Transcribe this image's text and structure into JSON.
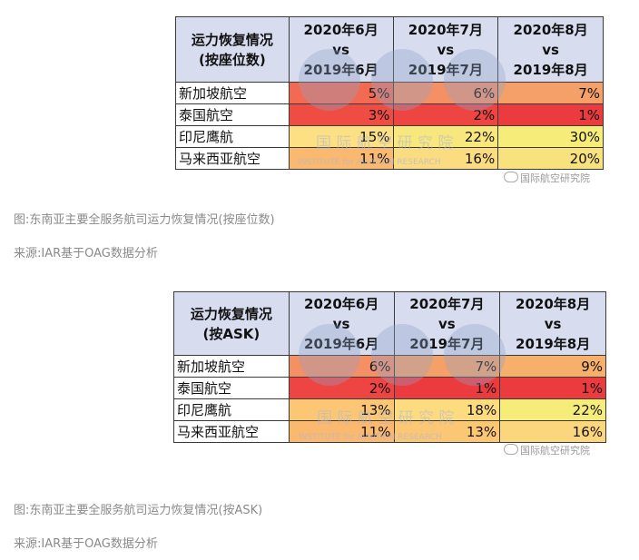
{
  "table1": {
    "header": {
      "metric": [
        "运力恢复情况",
        "(按座位数)"
      ],
      "cols": [
        [
          "2020年6月",
          "vs",
          "2019年6月"
        ],
        [
          "2020年7月",
          "vs",
          "2019年7月"
        ],
        [
          "2020年8月",
          "vs",
          "2019年8月"
        ]
      ]
    },
    "rows": [
      {
        "airline": "新加坡航空",
        "values": [
          "5%",
          "6%",
          "7%"
        ],
        "colors": [
          "#f26a52",
          "#f59065",
          "#f5a068"
        ]
      },
      {
        "airline": "泰国航空",
        "values": [
          "3%",
          "2%",
          "1%"
        ],
        "colors": [
          "#ef4d43",
          "#ee4542",
          "#ec3b3f"
        ]
      },
      {
        "airline": "印尼鹰航",
        "values": [
          "15%",
          "22%",
          "30%"
        ],
        "colors": [
          "#fde084",
          "#f8e77c",
          "#f5ec7a"
        ]
      },
      {
        "airline": "马来西亚航空",
        "values": [
          "11%",
          "16%",
          "20%"
        ],
        "colors": [
          "#fbb86f",
          "#fcdc81",
          "#f8e27d"
        ]
      }
    ],
    "brand": "国际航空研究院",
    "watermark": {
      "big": "国 际 航 空 研 究 院",
      "small": "INSTITUTE for AVIATION RESEARCH"
    }
  },
  "caption1": "图:东南亚主要全服务航司运力恢复情况(按座位数)",
  "source1": "来源:IAR基于OAG数据分析",
  "table2": {
    "header": {
      "metric": [
        "运力恢复情况",
        "(按ASK)"
      ],
      "cols": [
        [
          "2020年6月",
          "vs",
          "2019年6月"
        ],
        [
          "2020年7月",
          "vs",
          "2019年7月"
        ],
        [
          "2020年8月",
          "vs",
          "2019年8月"
        ]
      ]
    },
    "rows": [
      {
        "airline": "新加坡航空",
        "values": [
          "6%",
          "7%",
          "9%"
        ],
        "colors": [
          "#f59065",
          "#f5a068",
          "#f7b06c"
        ]
      },
      {
        "airline": "泰国航空",
        "values": [
          "2%",
          "1%",
          "1%"
        ],
        "colors": [
          "#ee4542",
          "#ec3b3f",
          "#ec3b3f"
        ]
      },
      {
        "airline": "印尼鹰航",
        "values": [
          "13%",
          "18%",
          "22%"
        ],
        "colors": [
          "#fcc774",
          "#fddc80",
          "#f5ec7a"
        ]
      },
      {
        "airline": "马来西亚航空",
        "values": [
          "11%",
          "13%",
          "16%"
        ],
        "colors": [
          "#fbb86f",
          "#fcc774",
          "#fcd67d"
        ]
      }
    ],
    "brand": "国际航空研究院",
    "watermark": {
      "big": "国 际 航 空 研 究 院",
      "small": "INSTITUTE for AVIATION RESEARCH"
    }
  },
  "caption2": "图:东南亚主要全服务航司运力恢复情况(按ASK)",
  "source2": "来源:IAR基于OAG数据分析"
}
